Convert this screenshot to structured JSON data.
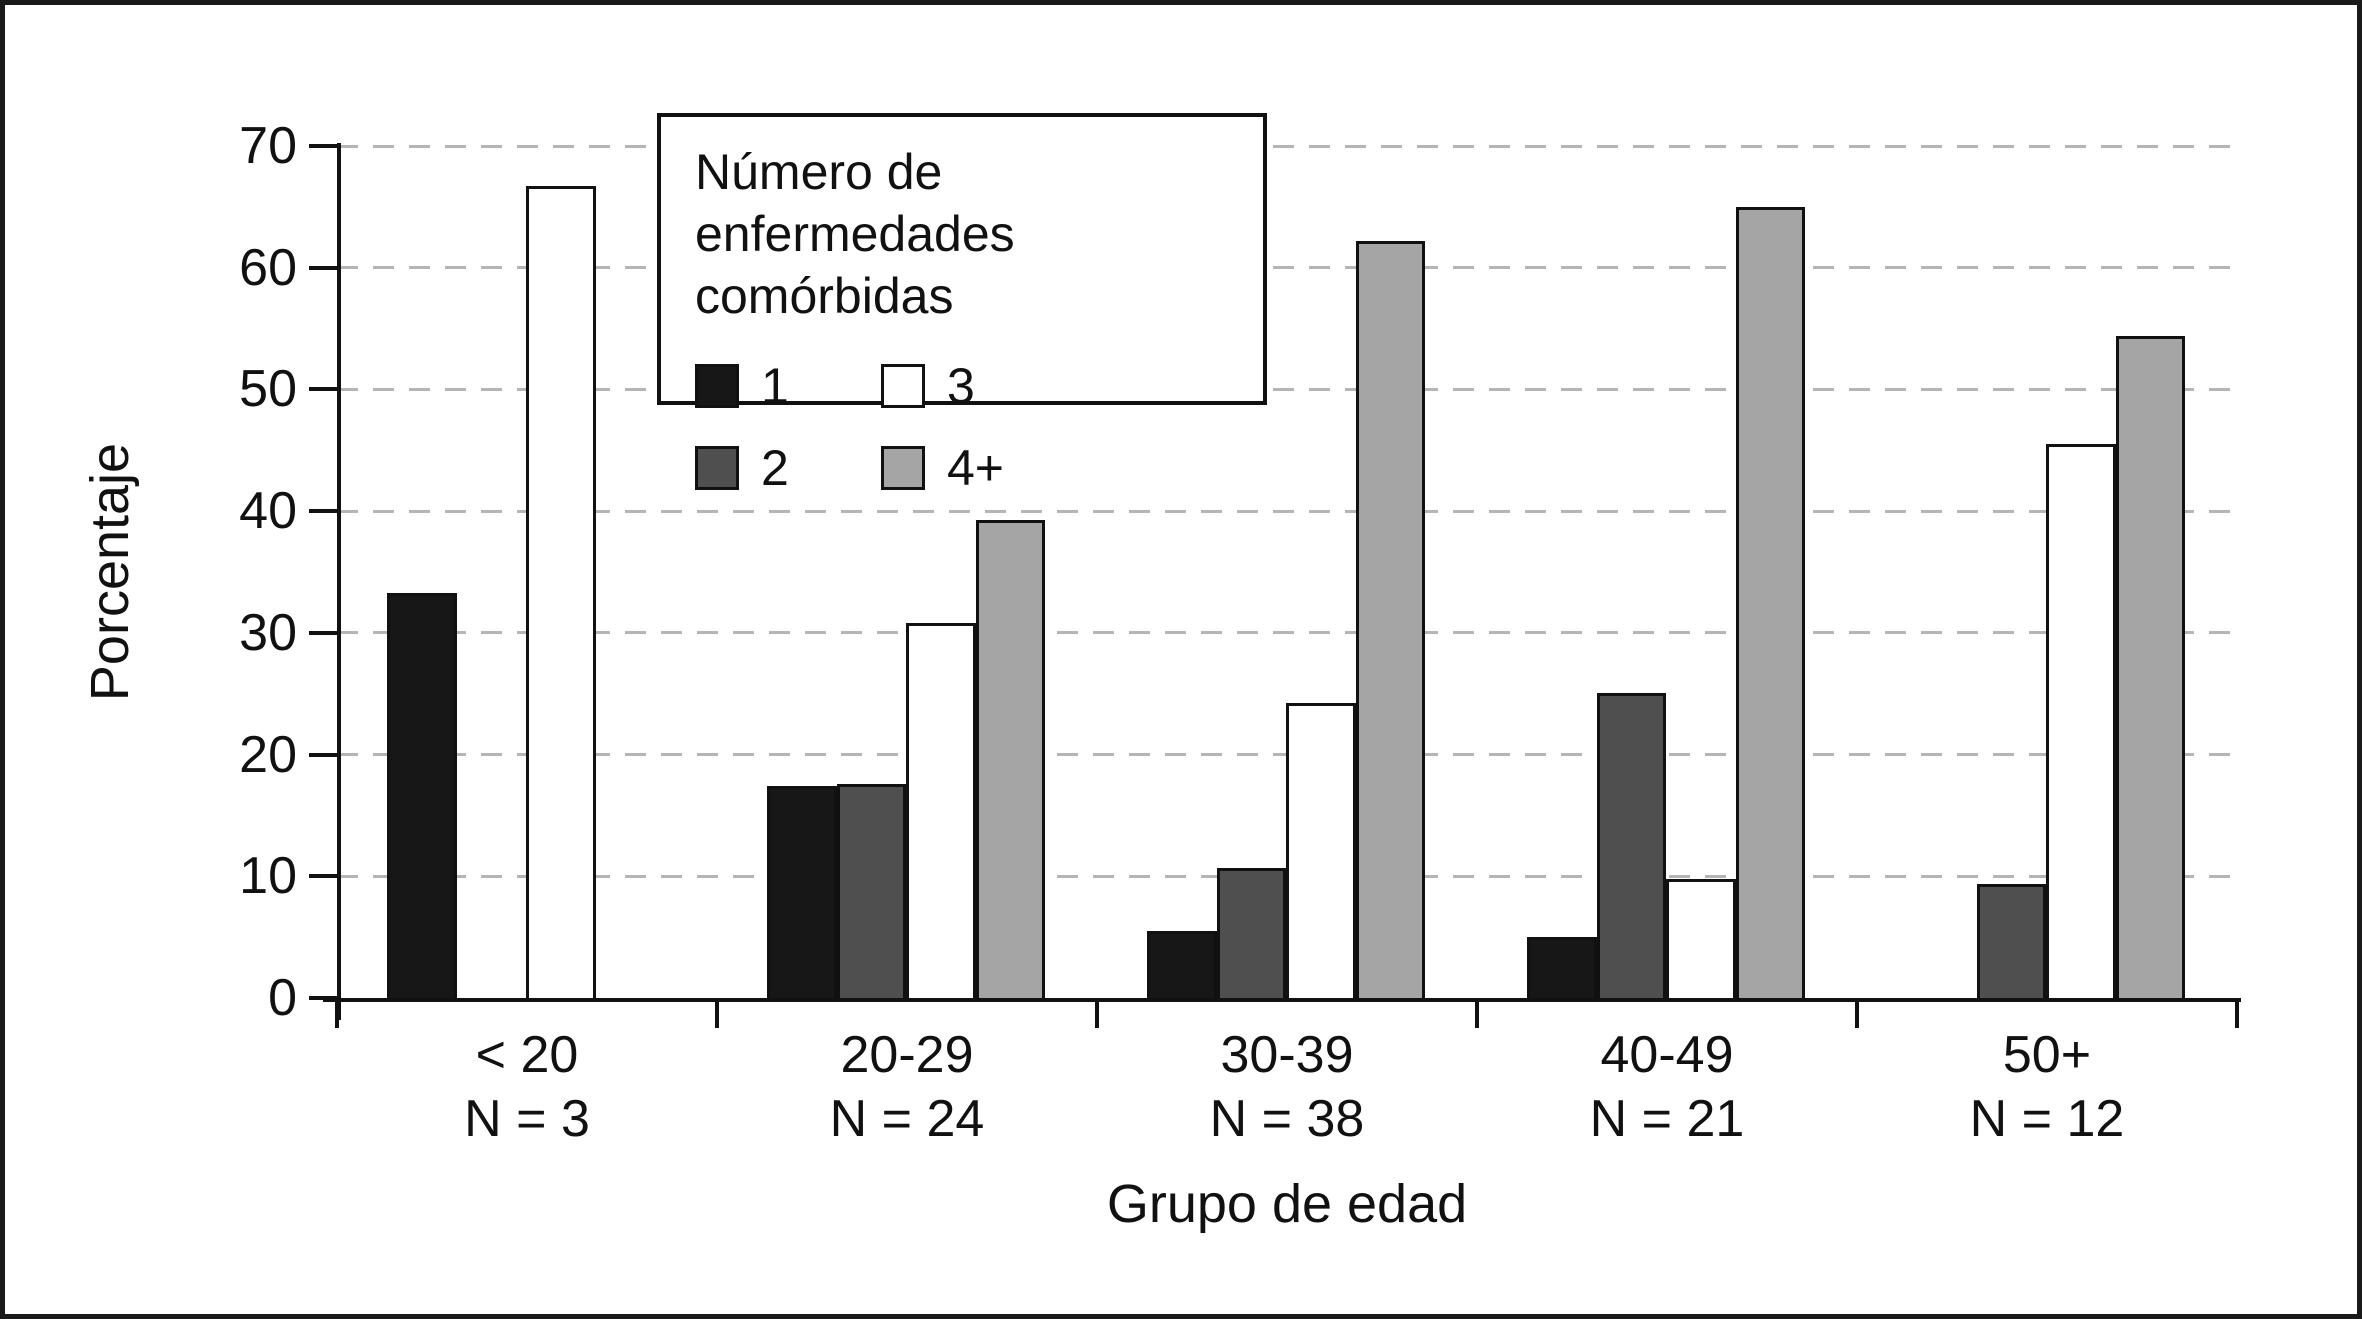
{
  "chart_data": {
    "type": "bar",
    "title": "",
    "xlabel": "Grupo de edad",
    "ylabel": "Porcentaje",
    "ylim": [
      0,
      70
    ],
    "yticks": [
      0,
      10,
      20,
      30,
      40,
      50,
      60,
      70
    ],
    "grid": "horizontal-dashed",
    "legend_position": "top-left-inside",
    "categories": [
      "< 20",
      "20-29",
      "30-39",
      "40-49",
      "50+"
    ],
    "category_sublabels": [
      "N = 3",
      "N = 24",
      "N = 38",
      "N = 21",
      "N = 12"
    ],
    "series": [
      {
        "name": "1",
        "color": "#171717",
        "values": [
          33.3,
          17.4,
          5.5,
          5.0,
          0
        ]
      },
      {
        "name": "2",
        "color": "#4f4f4f",
        "values": [
          0,
          17.6,
          10.7,
          25.1,
          9.4
        ]
      },
      {
        "name": "3",
        "color": "#ffffff",
        "values": [
          66.7,
          30.8,
          24.2,
          9.8,
          45.5
        ]
      },
      {
        "name": "4+",
        "color": "#a5a5a5",
        "values": [
          0,
          39.3,
          62.2,
          65.0,
          54.4
        ]
      }
    ]
  },
  "legend": {
    "title_line1": "Número de enfermedades",
    "title_line2": "comórbidas",
    "item_order": [
      0,
      2,
      1,
      3
    ]
  },
  "colors": {
    "axis": "#111111",
    "gridline": "#b5b5b5",
    "background": "#ffffff",
    "frame": "#1a1a1a"
  }
}
